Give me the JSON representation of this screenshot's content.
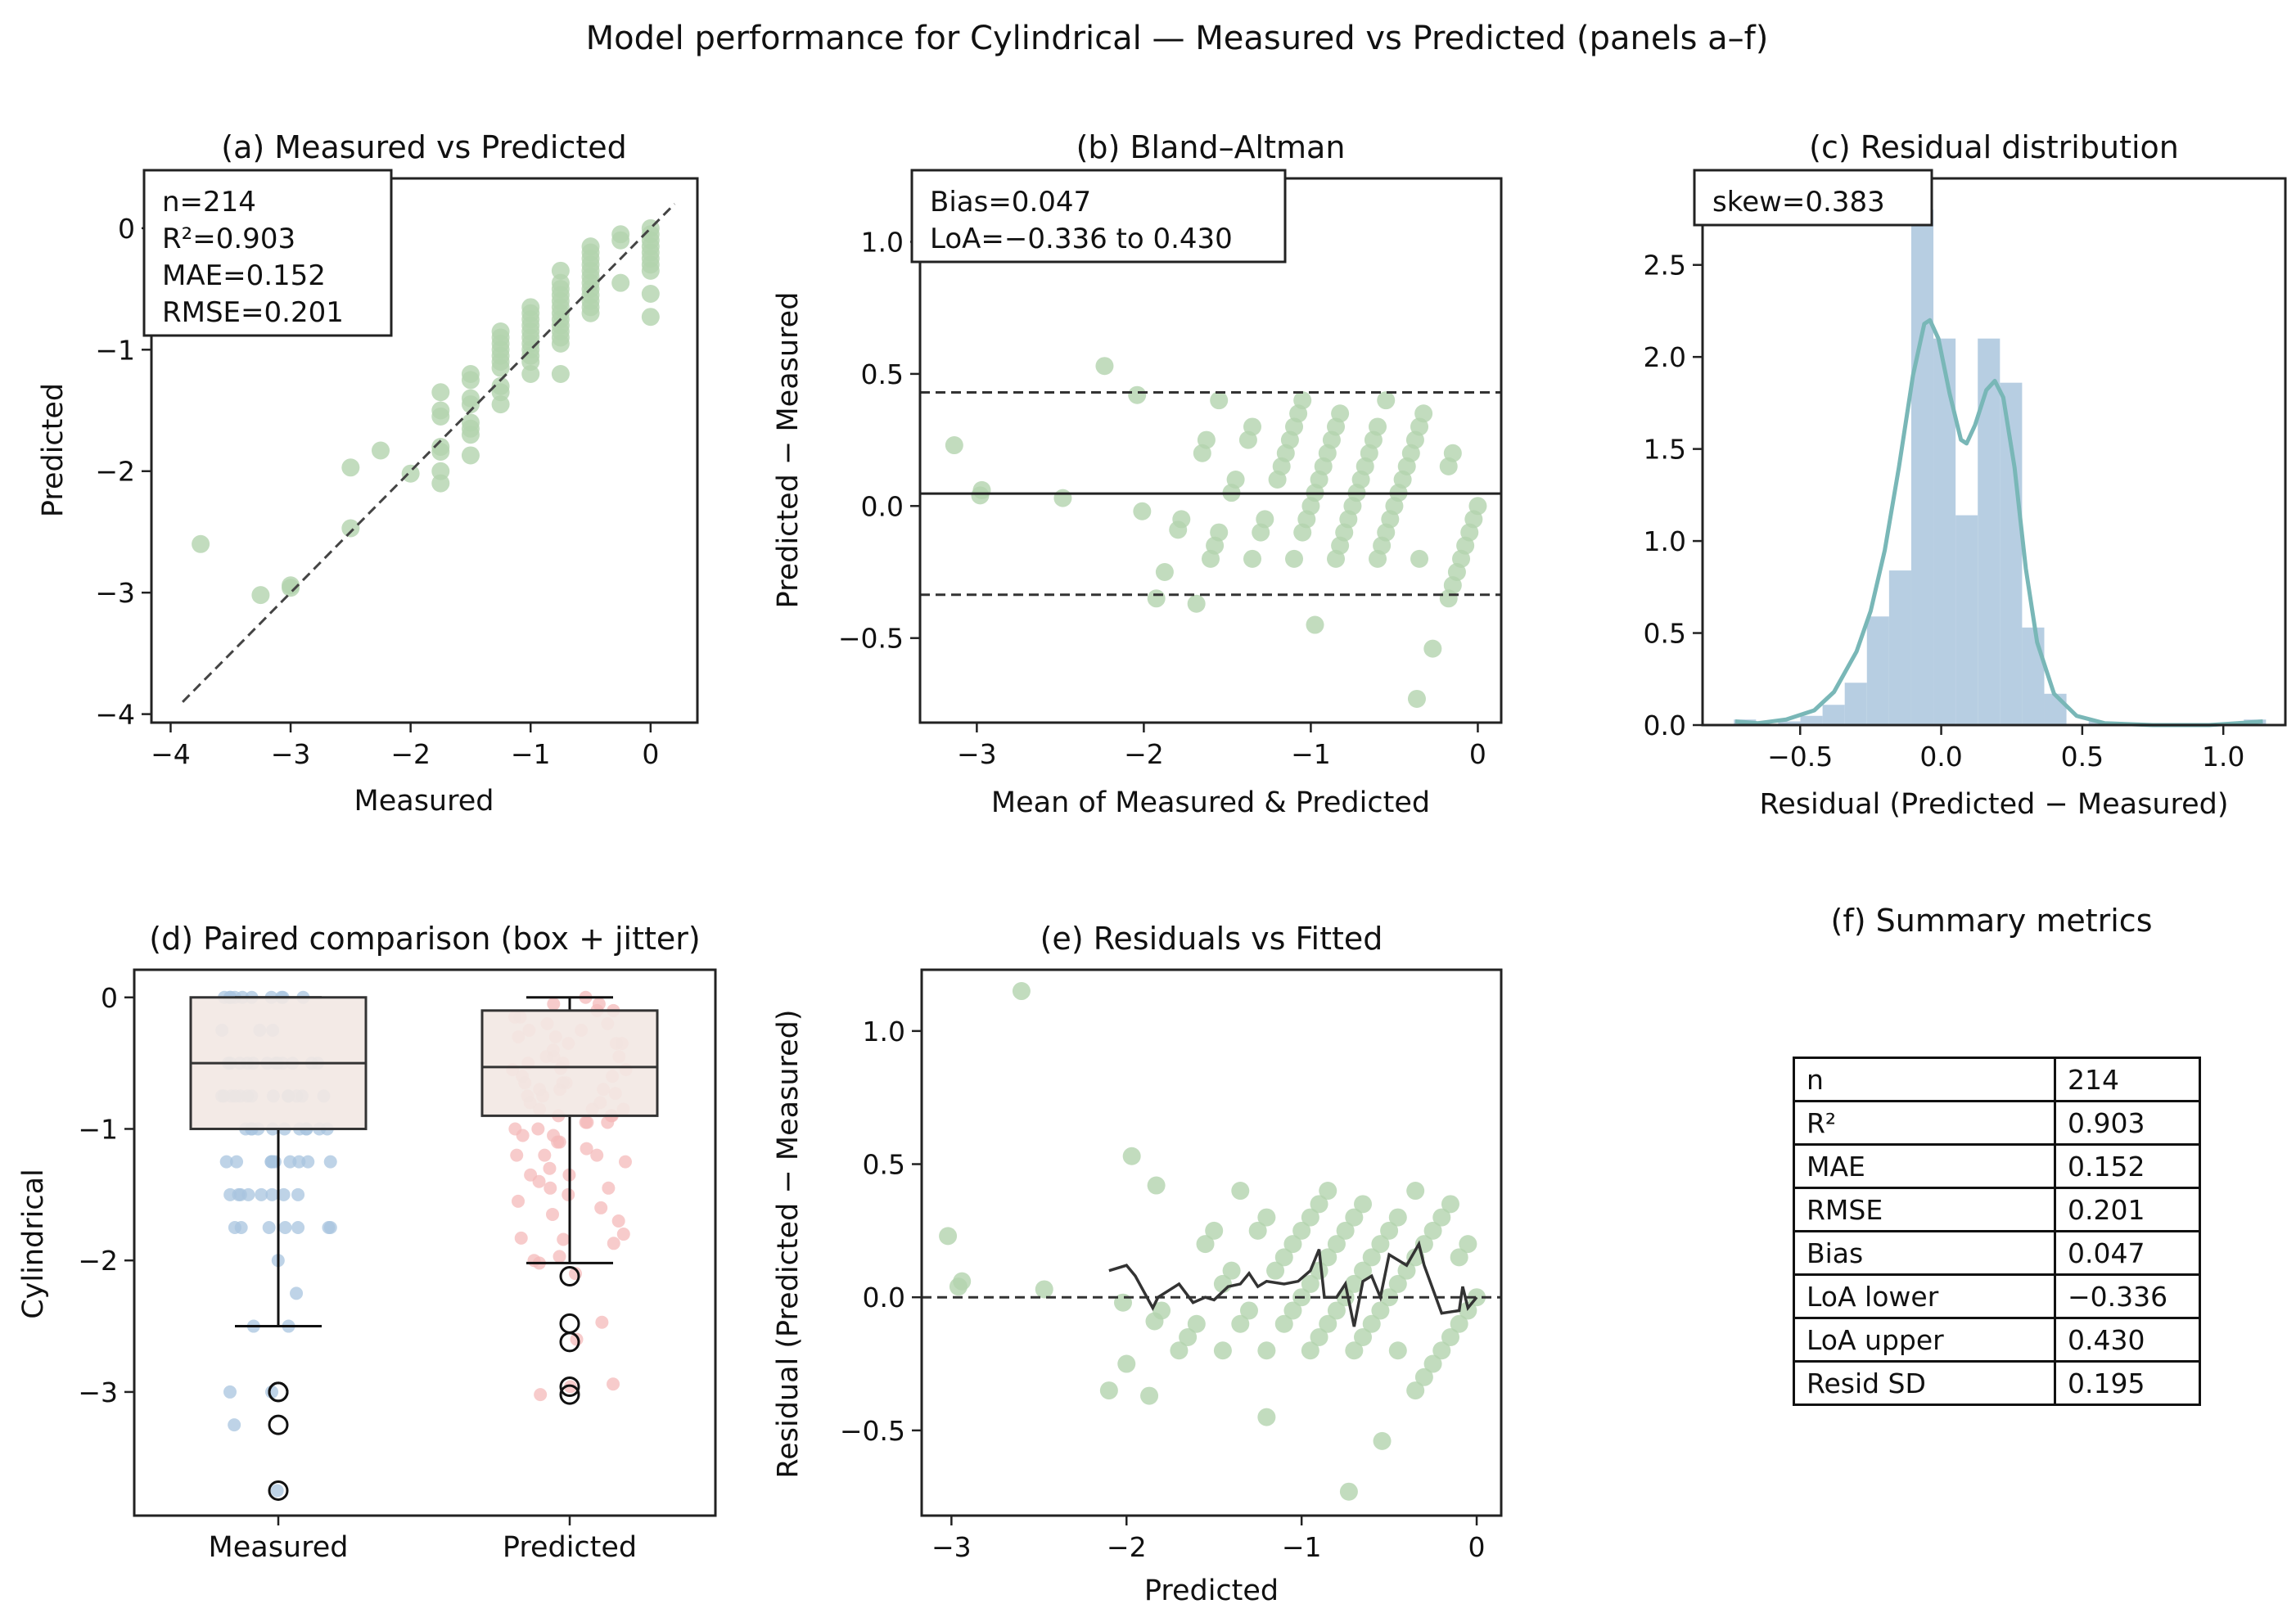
{
  "title": "Model performance for Cylindrical — Measured vs Predicted (panels a–f)",
  "colors": {
    "scatter": "#b3d3ae",
    "measured_jitter": "#a8c4df",
    "predicted_jitter": "#f4b9b9",
    "box_fill": "#f2e8e3",
    "hist": "#b3cbe0",
    "kde": "#79b7b7",
    "line": "#333333"
  },
  "pairs_note_columns": [
    "measured",
    "predicted"
  ],
  "chart_data": [
    {
      "panel": "a",
      "type": "scatter",
      "title": "(a) Measured vs Predicted",
      "xlabel": "Measured",
      "ylabel": "Predicted",
      "xlim": [
        -4.16,
        0.39
      ],
      "ylim": [
        -4.07,
        0.41
      ],
      "xticks": [
        -4,
        -3,
        -2,
        -1,
        0
      ],
      "yticks": [
        -4,
        -3,
        -2,
        -1,
        0
      ],
      "identity_line": [
        [
          -3.9,
          -3.9
        ],
        [
          0.2,
          0.2
        ]
      ],
      "annotation": [
        "n=214",
        "R²=0.903",
        "MAE=0.152",
        "RMSE=0.201"
      ],
      "points": [
        [
          -3.75,
          -2.6
        ],
        [
          -3.25,
          -3.02
        ],
        [
          -3.0,
          -2.96
        ],
        [
          -3.0,
          -2.94
        ],
        [
          -2.5,
          -1.97
        ],
        [
          -2.5,
          -2.47
        ],
        [
          -2.25,
          -1.83
        ],
        [
          -2.0,
          -2.02
        ],
        [
          -1.75,
          -1.35
        ],
        [
          -1.75,
          -1.5
        ],
        [
          -1.75,
          -1.55
        ],
        [
          -1.75,
          -1.8
        ],
        [
          -1.75,
          -1.84
        ],
        [
          -1.75,
          -2.0
        ],
        [
          -1.75,
          -2.1
        ],
        [
          -1.5,
          -1.2
        ],
        [
          -1.5,
          -1.25
        ],
        [
          -1.5,
          -1.4
        ],
        [
          -1.5,
          -1.45
        ],
        [
          -1.5,
          -1.6
        ],
        [
          -1.5,
          -1.65
        ],
        [
          -1.5,
          -1.7
        ],
        [
          -1.5,
          -1.87
        ],
        [
          -1.25,
          -0.85
        ],
        [
          -1.25,
          -0.9
        ],
        [
          -1.25,
          -0.95
        ],
        [
          -1.25,
          -1.0
        ],
        [
          -1.25,
          -1.05
        ],
        [
          -1.25,
          -1.1
        ],
        [
          -1.25,
          -1.15
        ],
        [
          -1.25,
          -1.3
        ],
        [
          -1.25,
          -1.35
        ],
        [
          -1.25,
          -1.45
        ],
        [
          -1.0,
          -0.65
        ],
        [
          -1.0,
          -0.7
        ],
        [
          -1.0,
          -0.75
        ],
        [
          -1.0,
          -0.8
        ],
        [
          -1.0,
          -0.85
        ],
        [
          -1.0,
          -0.9
        ],
        [
          -1.0,
          -0.95
        ],
        [
          -1.0,
          -1.0
        ],
        [
          -1.0,
          -1.05
        ],
        [
          -1.0,
          -1.1
        ],
        [
          -1.0,
          -1.2
        ],
        [
          -0.75,
          -0.35
        ],
        [
          -0.75,
          -0.45
        ],
        [
          -0.75,
          -0.5
        ],
        [
          -0.75,
          -0.55
        ],
        [
          -0.75,
          -0.6
        ],
        [
          -0.75,
          -0.65
        ],
        [
          -0.75,
          -0.7
        ],
        [
          -0.75,
          -0.75
        ],
        [
          -0.75,
          -0.8
        ],
        [
          -0.75,
          -0.85
        ],
        [
          -0.75,
          -0.9
        ],
        [
          -0.75,
          -0.95
        ],
        [
          -0.75,
          -1.2
        ],
        [
          -0.5,
          -0.15
        ],
        [
          -0.5,
          -0.2
        ],
        [
          -0.5,
          -0.25
        ],
        [
          -0.5,
          -0.3
        ],
        [
          -0.5,
          -0.35
        ],
        [
          -0.5,
          -0.4
        ],
        [
          -0.5,
          -0.45
        ],
        [
          -0.5,
          -0.5
        ],
        [
          -0.5,
          -0.55
        ],
        [
          -0.5,
          -0.6
        ],
        [
          -0.5,
          -0.65
        ],
        [
          -0.5,
          -0.7
        ],
        [
          -0.25,
          -0.05
        ],
        [
          -0.25,
          -0.1
        ],
        [
          -0.25,
          -0.45
        ],
        [
          0.0,
          0.0
        ],
        [
          0.0,
          -0.05
        ],
        [
          0.0,
          -0.1
        ],
        [
          0.0,
          -0.15
        ],
        [
          0.0,
          -0.2
        ],
        [
          0.0,
          -0.25
        ],
        [
          0.0,
          -0.3
        ],
        [
          0.0,
          -0.35
        ],
        [
          0.0,
          -0.54
        ],
        [
          0.0,
          -0.73
        ]
      ]
    },
    {
      "panel": "b",
      "type": "scatter",
      "title": "(b) Bland–Altman",
      "xlabel": "Mean of Measured & Predicted",
      "ylabel": "Predicted − Measured",
      "xlim": [
        -3.34,
        0.14
      ],
      "ylim": [
        -0.82,
        1.24
      ],
      "xticks": [
        -3,
        -2,
        -1,
        0
      ],
      "yticks": [
        -0.5,
        0.0,
        0.5,
        1.0
      ],
      "bias": 0.047,
      "loa": [
        -0.336,
        0.43
      ],
      "annotation": [
        "Bias=0.047",
        "LoA=−0.336 to 0.430"
      ]
    },
    {
      "panel": "c",
      "type": "bar",
      "title": "(c) Residual distribution",
      "xlabel": "Residual (Predicted − Measured)",
      "ylabel": "",
      "xlim": [
        -0.846,
        1.22
      ],
      "ylim": [
        0,
        2.97
      ],
      "xticks": [
        -0.5,
        0.0,
        0.5,
        1.0
      ],
      "yticks": [
        0.0,
        0.5,
        1.0,
        1.5,
        2.0,
        2.5
      ],
      "bin_start": -0.735,
      "bin_width": 0.0786,
      "density": [
        0.03,
        0.0,
        0.02,
        0.05,
        0.11,
        0.23,
        0.59,
        0.84,
        2.8,
        2.1,
        1.14,
        2.1,
        1.86,
        0.53,
        0.17,
        0.0,
        0.02,
        0,
        0,
        0,
        0,
        0,
        0,
        0.03
      ],
      "kde": [
        [
          -0.73,
          0.02
        ],
        [
          -0.65,
          0.01
        ],
        [
          -0.55,
          0.03
        ],
        [
          -0.45,
          0.08
        ],
        [
          -0.38,
          0.18
        ],
        [
          -0.3,
          0.4
        ],
        [
          -0.25,
          0.62
        ],
        [
          -0.2,
          0.95
        ],
        [
          -0.15,
          1.4
        ],
        [
          -0.1,
          1.9
        ],
        [
          -0.06,
          2.18
        ],
        [
          -0.04,
          2.2
        ],
        [
          -0.01,
          2.1
        ],
        [
          0.03,
          1.8
        ],
        [
          0.07,
          1.55
        ],
        [
          0.09,
          1.53
        ],
        [
          0.12,
          1.63
        ],
        [
          0.16,
          1.82
        ],
        [
          0.19,
          1.87
        ],
        [
          0.22,
          1.78
        ],
        [
          0.26,
          1.4
        ],
        [
          0.3,
          0.85
        ],
        [
          0.34,
          0.45
        ],
        [
          0.4,
          0.17
        ],
        [
          0.48,
          0.05
        ],
        [
          0.58,
          0.01
        ],
        [
          0.75,
          0.0
        ],
        [
          0.95,
          0.0
        ],
        [
          1.05,
          0.01
        ],
        [
          1.14,
          0.02
        ]
      ],
      "annotation": [
        "skew=0.383"
      ]
    },
    {
      "panel": "d",
      "type": "box",
      "title": "(d) Paired comparison (box + jitter)",
      "xlabel": "",
      "ylabel": "Cylindrical",
      "ylim": [
        -3.94,
        0.21
      ],
      "yticks": [
        -3,
        -2,
        -1,
        0
      ],
      "categories": [
        "Measured",
        "Predicted"
      ],
      "boxes": [
        {
          "q1": -1.0,
          "median": -0.5,
          "q3": 0.0,
          "whisker_low": -2.5,
          "whisker_high": 0.0,
          "outliers": [
            -3.0,
            -3.0,
            -3.25,
            -3.75
          ]
        },
        {
          "q1": -0.9,
          "median": -0.53,
          "q3": -0.1,
          "whisker_low": -2.02,
          "whisker_high": 0.0,
          "outliers": [
            -2.12,
            -2.48,
            -2.62,
            -2.96,
            -3.02
          ]
        }
      ]
    },
    {
      "panel": "e",
      "type": "scatter",
      "title": "(e) Residuals vs Fitted",
      "xlabel": "Predicted",
      "ylabel": "Residual (Predicted − Measured)",
      "xlim": [
        -3.17,
        0.14
      ],
      "ylim": [
        -0.82,
        1.23
      ],
      "xticks": [
        -3,
        -2,
        -1,
        0
      ],
      "yticks": [
        -0.5,
        0.0,
        0.5,
        1.0
      ],
      "reference": 0.0,
      "smooth": [
        [
          -2.1,
          0.1
        ],
        [
          -2.0,
          0.12
        ],
        [
          -1.95,
          0.08
        ],
        [
          -1.9,
          0.02
        ],
        [
          -1.85,
          -0.04
        ],
        [
          -1.82,
          0.0
        ],
        [
          -1.7,
          0.05
        ],
        [
          -1.62,
          -0.02
        ],
        [
          -1.55,
          0.0
        ],
        [
          -1.5,
          -0.01
        ],
        [
          -1.42,
          0.04
        ],
        [
          -1.35,
          0.05
        ],
        [
          -1.3,
          0.09
        ],
        [
          -1.25,
          0.04
        ],
        [
          -1.2,
          0.06
        ],
        [
          -1.1,
          0.05
        ],
        [
          -1.02,
          0.06
        ],
        [
          -0.95,
          0.1
        ],
        [
          -0.9,
          0.18
        ],
        [
          -0.87,
          0.0
        ],
        [
          -0.8,
          0.0
        ],
        [
          -0.75,
          0.05
        ],
        [
          -0.7,
          -0.11
        ],
        [
          -0.65,
          0.06
        ],
        [
          -0.6,
          0.08
        ],
        [
          -0.55,
          0.0
        ],
        [
          -0.5,
          0.16
        ],
        [
          -0.4,
          0.12
        ],
        [
          -0.33,
          0.2
        ],
        [
          -0.3,
          0.12
        ],
        [
          -0.2,
          -0.06
        ],
        [
          -0.1,
          -0.05
        ],
        [
          -0.08,
          0.04
        ],
        [
          -0.05,
          -0.04
        ],
        [
          0.0,
          0.0
        ]
      ]
    }
  ],
  "summary": {
    "title": "(f) Summary metrics",
    "rows": [
      {
        "k": "n",
        "v": "214"
      },
      {
        "k": "R²",
        "v": "0.903"
      },
      {
        "k": "MAE",
        "v": "0.152"
      },
      {
        "k": "RMSE",
        "v": "0.201"
      },
      {
        "k": "Bias",
        "v": "0.047"
      },
      {
        "k": "LoA lower",
        "v": "−0.336"
      },
      {
        "k": "LoA upper",
        "v": "0.430"
      },
      {
        "k": "Resid SD",
        "v": "0.195"
      }
    ]
  }
}
